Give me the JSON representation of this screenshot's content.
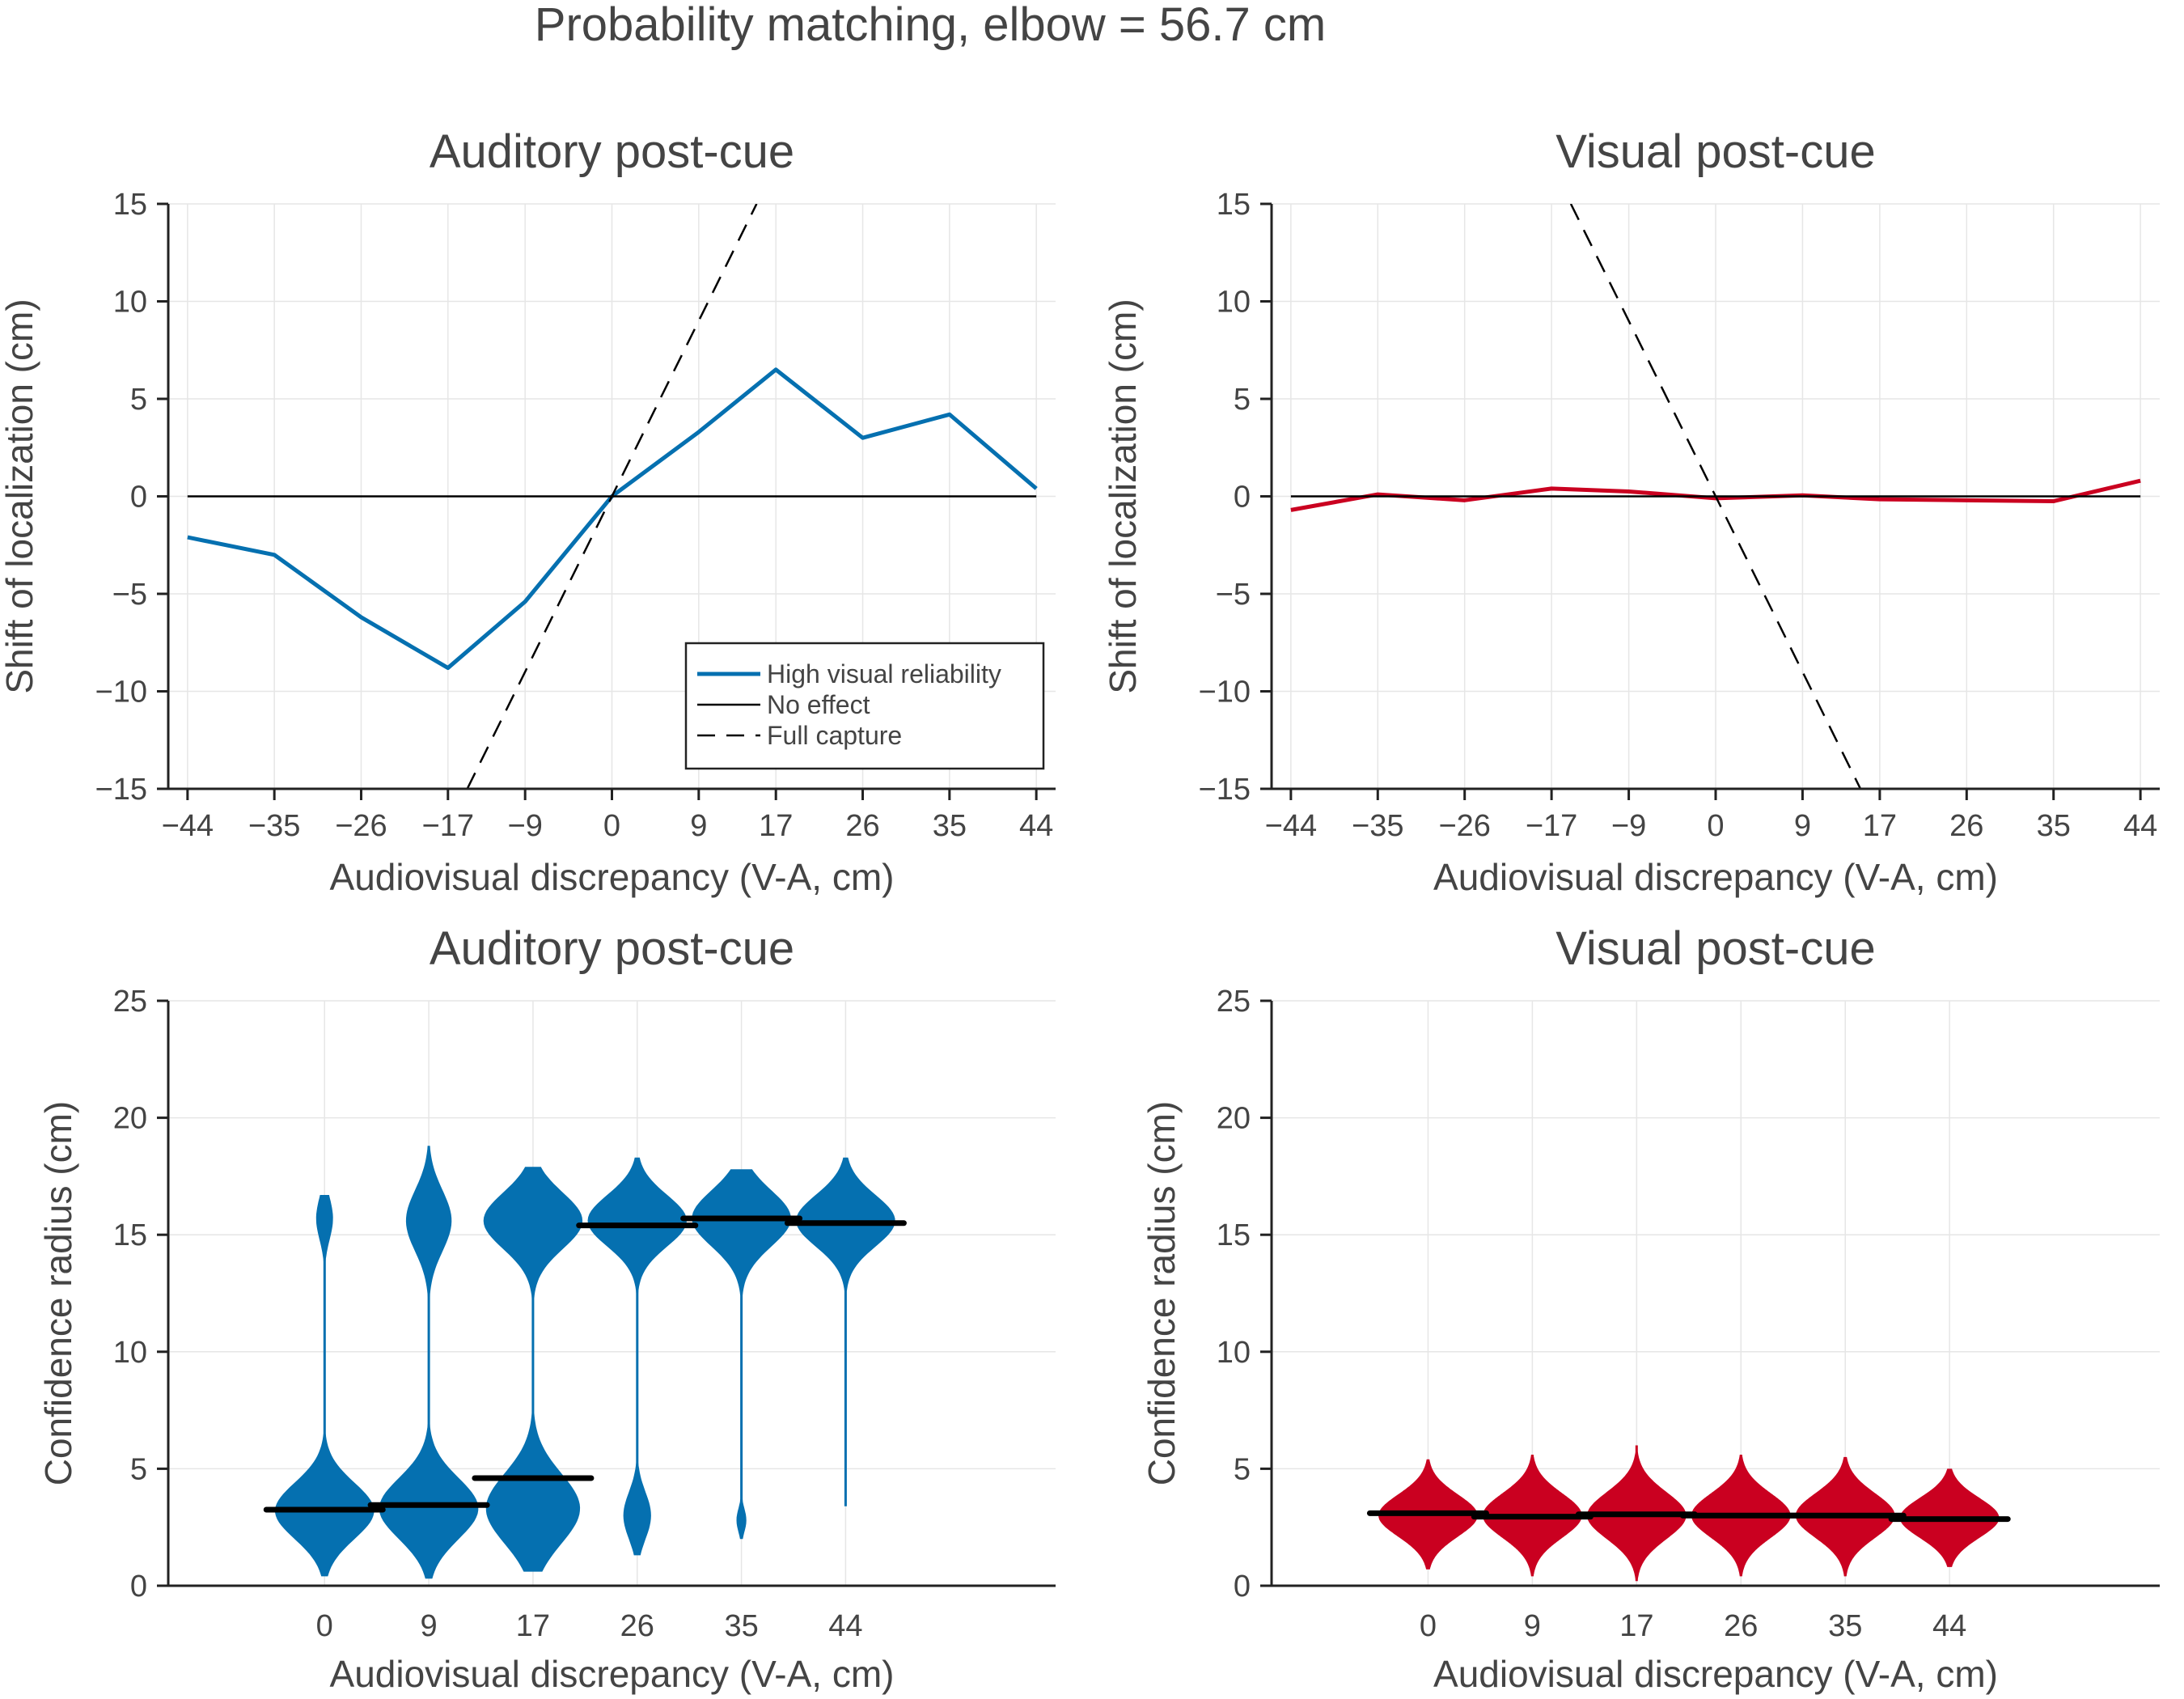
{
  "title": "Probability matching, elbow = 56.7 cm",
  "colors": {
    "auditory": "#0570b0",
    "visual": "#ca0020",
    "reference": "#000000"
  },
  "chart_data": [
    {
      "type": "line",
      "title": "Auditory post-cue",
      "xlabel": "Audiovisual discrepancy (V-A, cm)",
      "ylabel": "Shift of localization (cm)",
      "xticks": [
        -44,
        -35,
        -26,
        -17,
        -9,
        0,
        9,
        17,
        26,
        35,
        44
      ],
      "xtick_labels": [
        "−44",
        "−35",
        "−26",
        "−17",
        "−9",
        "0",
        "9",
        "17",
        "26",
        "35",
        "44"
      ],
      "xlim": [
        -46,
        46
      ],
      "yticks": [
        -15,
        -10,
        -5,
        0,
        5,
        10,
        15
      ],
      "ytick_labels": [
        "−15",
        "−10",
        "−5",
        "0",
        "5",
        "10",
        "15"
      ],
      "ylim": [
        -15,
        15
      ],
      "grid": true,
      "legend_position": "bottom-right",
      "series": [
        {
          "name": "High visual reliability",
          "color": "#0570b0",
          "style": "solid",
          "x": [
            -44,
            -35,
            -26,
            -17,
            -9,
            0,
            9,
            17,
            26,
            35,
            44
          ],
          "y": [
            -2.1,
            -3.0,
            -6.2,
            -8.8,
            -5.4,
            0.0,
            3.3,
            6.5,
            3.0,
            4.2,
            0.4
          ]
        },
        {
          "name": "No effect",
          "color": "#000000",
          "style": "solid",
          "x": [
            -44,
            44
          ],
          "y": [
            0,
            0
          ]
        },
        {
          "name": "Full capture",
          "color": "#000000",
          "style": "dashed",
          "x": [
            -15,
            15
          ],
          "y": [
            -15,
            15
          ]
        }
      ]
    },
    {
      "type": "line",
      "title": "Visual post-cue",
      "xlabel": "Audiovisual discrepancy (V-A, cm)",
      "ylabel": "Shift of localization (cm)",
      "xticks": [
        -44,
        -35,
        -26,
        -17,
        -9,
        0,
        9,
        17,
        26,
        35,
        44
      ],
      "xtick_labels": [
        "−44",
        "−35",
        "−26",
        "−17",
        "−9",
        "0",
        "9",
        "17",
        "26",
        "35",
        "44"
      ],
      "xlim": [
        -46,
        46
      ],
      "yticks": [
        -15,
        -10,
        -5,
        0,
        5,
        10,
        15
      ],
      "ytick_labels": [
        "−15",
        "−10",
        "−5",
        "0",
        "5",
        "10",
        "15"
      ],
      "ylim": [
        -15,
        15
      ],
      "grid": true,
      "series": [
        {
          "color": "#ca0020",
          "style": "solid",
          "x": [
            -44,
            -35,
            -26,
            -17,
            -9,
            0,
            9,
            17,
            26,
            35,
            44
          ],
          "y": [
            -0.7,
            0.1,
            -0.2,
            0.4,
            0.25,
            -0.1,
            0.05,
            -0.15,
            -0.2,
            -0.25,
            0.8
          ]
        },
        {
          "color": "#000000",
          "style": "solid",
          "x": [
            -44,
            44
          ],
          "y": [
            0,
            0
          ]
        },
        {
          "color": "#000000",
          "style": "dashed",
          "x": [
            -15,
            15
          ],
          "y": [
            15,
            -15
          ]
        }
      ]
    },
    {
      "type": "violin",
      "title": "Auditory post-cue",
      "xlabel": "Audiovisual discrepancy (V-A, cm)",
      "ylabel": "Confidence radius (cm)",
      "categories": [
        "0",
        "9",
        "17",
        "26",
        "35",
        "44"
      ],
      "yticks": [
        0,
        5,
        10,
        15,
        20,
        25
      ],
      "ylim": [
        0,
        25
      ],
      "grid": true,
      "color": "#0570b0",
      "medians": [
        3.25,
        3.45,
        4.6,
        15.4,
        15.7,
        15.5
      ],
      "distributions": [
        {
          "min": 0.4,
          "max": 16.7,
          "modes": [
            {
              "mu": 3.2,
              "sd": 1.2,
              "w": 1.0
            },
            {
              "mu": 15.7,
              "sd": 0.9,
              "w": 0.17
            }
          ]
        },
        {
          "min": 0.3,
          "max": 18.8,
          "modes": [
            {
              "mu": 3.3,
              "sd": 1.3,
              "w": 1.0
            },
            {
              "mu": 15.6,
              "sd": 1.3,
              "w": 0.46
            }
          ]
        },
        {
          "min": 0.6,
          "max": 17.9,
          "modes": [
            {
              "mu": 3.3,
              "sd": 1.5,
              "w": 0.95
            },
            {
              "mu": 15.6,
              "sd": 1.2,
              "w": 1.0
            }
          ]
        },
        {
          "min": 1.3,
          "max": 18.3,
          "modes": [
            {
              "mu": 15.6,
              "sd": 1.1,
              "w": 1.0
            },
            {
              "mu": 3.0,
              "sd": 1.0,
              "w": 0.28
            }
          ]
        },
        {
          "min": 2.0,
          "max": 17.8,
          "modes": [
            {
              "mu": 15.7,
              "sd": 1.2,
              "w": 1.0
            },
            {
              "mu": 2.8,
              "sd": 0.5,
              "w": 0.1
            }
          ]
        },
        {
          "min": 3.4,
          "max": 18.3,
          "modes": [
            {
              "mu": 15.6,
              "sd": 1.1,
              "w": 1.0
            },
            {
              "mu": 6.0,
              "sd": 1.5,
              "w": 0.02
            }
          ]
        }
      ]
    },
    {
      "type": "violin",
      "title": "Visual post-cue",
      "xlabel": "Audiovisual discrepancy (V-A, cm)",
      "ylabel": "Confidence radius (cm)",
      "categories": [
        "0",
        "9",
        "17",
        "26",
        "35",
        "44"
      ],
      "yticks": [
        0,
        5,
        10,
        15,
        20,
        25
      ],
      "ylim": [
        0,
        25
      ],
      "grid": true,
      "color": "#ca0020",
      "medians": [
        3.1,
        2.95,
        3.05,
        3.0,
        3.0,
        2.85
      ],
      "distributions": [
        {
          "min": 0.7,
          "max": 5.4,
          "modes": [
            {
              "mu": 3.0,
              "sd": 0.9,
              "w": 1.0
            }
          ]
        },
        {
          "min": 0.4,
          "max": 5.6,
          "modes": [
            {
              "mu": 3.0,
              "sd": 0.95,
              "w": 1.0
            }
          ]
        },
        {
          "min": 0.2,
          "max": 6.0,
          "modes": [
            {
              "mu": 3.0,
              "sd": 1.0,
              "w": 1.0
            }
          ]
        },
        {
          "min": 0.4,
          "max": 5.6,
          "modes": [
            {
              "mu": 3.0,
              "sd": 0.95,
              "w": 1.0
            }
          ]
        },
        {
          "min": 0.4,
          "max": 5.5,
          "modes": [
            {
              "mu": 3.0,
              "sd": 0.95,
              "w": 1.0
            }
          ]
        },
        {
          "min": 0.8,
          "max": 5.0,
          "modes": [
            {
              "mu": 2.9,
              "sd": 0.85,
              "w": 1.0
            }
          ]
        }
      ]
    }
  ]
}
